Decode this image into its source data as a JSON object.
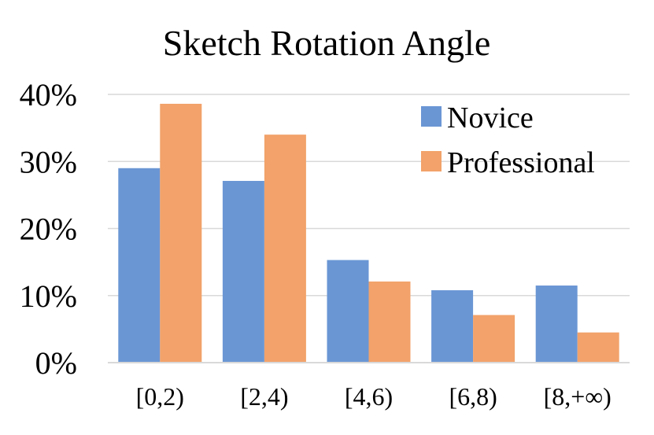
{
  "chart_data": {
    "type": "bar",
    "title": "Sketch Rotation Angle",
    "xlabel": "",
    "ylabel": "",
    "categories": [
      "[0,2)",
      "[2,4)",
      "[4,6)",
      "[6,8)",
      "[8,+∞)"
    ],
    "series": [
      {
        "name": "Novice",
        "values": [
          29,
          27.1,
          15.3,
          10.8,
          11.5
        ],
        "color": "#6A96D4"
      },
      {
        "name": "Professional",
        "values": [
          38.6,
          34,
          12.1,
          7.1,
          4.5
        ],
        "color": "#F2A26A"
      }
    ],
    "ylim": [
      0,
      40
    ],
    "yticks": [
      0,
      10,
      20,
      30,
      40
    ],
    "ytick_labels": [
      "0%",
      "10%",
      "20%",
      "30%",
      "40%"
    ],
    "grid": true,
    "gridline_color": "#D9D9D9",
    "legend_placement": "top-right"
  }
}
